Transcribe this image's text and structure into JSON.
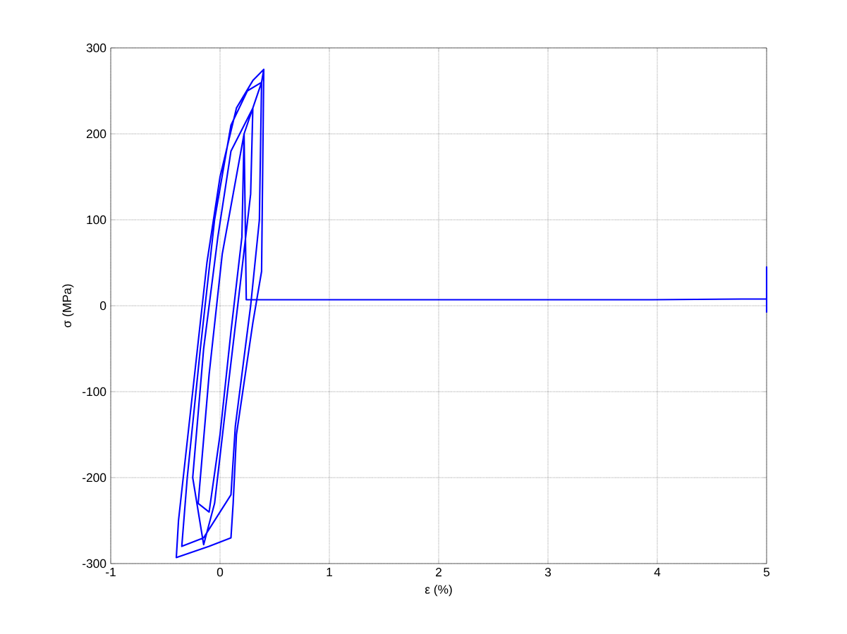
{
  "chart_data": {
    "type": "line",
    "xlabel": "ε (%)",
    "ylabel": "σ (MPa)",
    "xlim": [
      -1,
      5
    ],
    "ylim": [
      -300,
      300
    ],
    "xticks": [
      -1,
      0,
      1,
      2,
      3,
      4,
      5
    ],
    "yticks": [
      -300,
      -200,
      -100,
      0,
      100,
      200,
      300
    ],
    "grid": true,
    "marker": "none",
    "line_style": "solid",
    "series": [
      {
        "color": "#0000ff",
        "x": [
          0.4,
          0.38,
          0.3,
          0.15,
          0.12,
          0.1,
          -0.1,
          -0.4,
          -0.38,
          -0.25,
          -0.12,
          0.0,
          0.15,
          0.3,
          0.4,
          0.38,
          0.36,
          0.28,
          0.14,
          0.1,
          -0.15,
          -0.35,
          -0.3,
          -0.18,
          -0.05,
          0.1,
          0.25,
          0.38,
          0.3,
          0.28,
          0.18,
          0.05,
          -0.05,
          -0.15,
          -0.25,
          -0.15,
          -0.02,
          0.1,
          0.3,
          0.22,
          0.2,
          0.1,
          0.0,
          -0.1,
          -0.2,
          -0.1,
          0.02,
          0.22,
          0.24,
          3.95,
          5.0,
          5.0,
          5.0
        ],
        "values": [
          275,
          40,
          -20,
          -150,
          -230,
          -270,
          -280,
          -293,
          -250,
          -100,
          50,
          150,
          230,
          262,
          275,
          260,
          100,
          0,
          -140,
          -220,
          -270,
          -280,
          -200,
          -50,
          100,
          210,
          250,
          260,
          230,
          130,
          20,
          -120,
          -230,
          -278,
          -200,
          -50,
          80,
          180,
          230,
          200,
          80,
          -30,
          -150,
          -240,
          -230,
          -80,
          60,
          200,
          7,
          7,
          8,
          45,
          -8
        ]
      }
    ]
  }
}
